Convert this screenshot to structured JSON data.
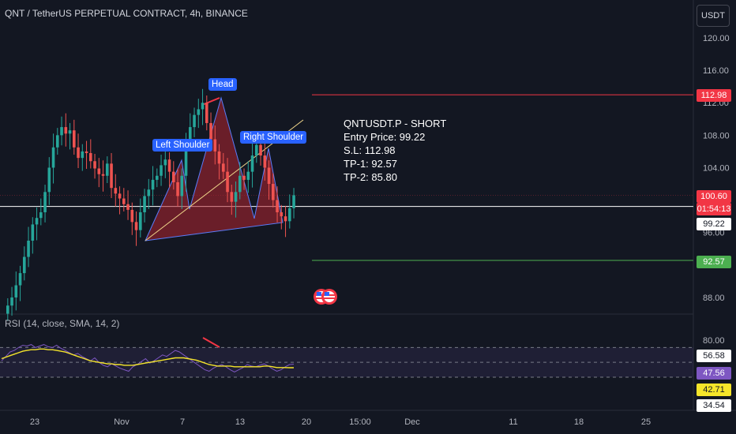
{
  "header": {
    "symbol_title": "QNT / TetherUS PERPETUAL CONTRACT, 4h, BINANCE",
    "currency_button": "USDT"
  },
  "trade_info": {
    "line1": "QNTUSDT.P - SHORT",
    "line2": "Entry Price: 99.22",
    "line3": "S.L: 112.98",
    "line4": "TP-1: 92.57",
    "line5": "TP-2: 85.80"
  },
  "pattern_labels": {
    "head": "Head",
    "left_shoulder": "Left Shoulder",
    "right_shoulder": "Right Shoulder"
  },
  "price_tags": {
    "stop_loss": "112.98",
    "current_price": "100.60",
    "countdown": "01:54:13",
    "entry": "99.22",
    "tp1": "92.57",
    "rsi_upper": "56.58",
    "rsi_value": "47.56",
    "rsi_ma": "42.71",
    "rsi_lower": "34.54"
  },
  "rsi_label": "RSI (14, close, SMA, 14, 2)",
  "colors": {
    "background": "#131722",
    "up": "#26a69a",
    "down": "#ef5350",
    "stop_loss_tag": "#f23645",
    "tp_tag": "#4caf50",
    "pattern_fill": "#b2242f",
    "rsi_line": "#7e57c2",
    "rsi_ma_line": "#f5e52a",
    "label_blue": "#2962ff"
  },
  "chart_data": [
    {
      "type": "candlestick",
      "title": "QNT / TetherUS PERPETUAL CONTRACT, 4h, BINANCE",
      "y_axis_ticks": [
        "120.00",
        "116.00",
        "112.00",
        "108.00",
        "104.00",
        "100.00",
        "96.00",
        "92.00",
        "88.00"
      ],
      "x_axis_ticks": [
        "23",
        "Nov",
        "7",
        "13",
        "20",
        "15:00",
        "Dec",
        "11",
        "18",
        "25"
      ],
      "ylim": [
        86,
        122
      ],
      "horizontal_levels": [
        {
          "value": 112.98,
          "color": "#f23645"
        },
        {
          "value": 99.22,
          "color": "#ffffff"
        },
        {
          "value": 92.57,
          "color": "#4caf50"
        }
      ],
      "close_series": [
        87.0,
        88.0,
        89.5,
        91.0,
        93.0,
        95.0,
        97.0,
        97.8,
        98.5,
        101.0,
        104.0,
        106.5,
        108.0,
        109.0,
        108.2,
        108.6,
        106.5,
        105.2,
        106.0,
        105.8,
        104.8,
        103.9,
        103.2,
        103.0,
        104.5,
        101.5,
        100.8,
        100.2,
        99.5,
        98.8,
        97.3,
        96.3,
        98.5,
        100.5,
        101.3,
        102.5,
        103.0,
        104.3,
        105.0,
        103.5,
        102.2,
        100.5,
        103.0,
        107.0,
        109.0,
        110.5,
        111.2,
        112.0,
        109.5,
        107.5,
        106.0,
        104.5,
        103.5,
        101.0,
        99.8,
        101.0,
        103.0,
        102.5,
        103.5,
        105.5,
        106.8,
        105.5,
        104.0,
        102.0,
        100.0,
        98.5,
        98.0,
        97.4,
        99.0,
        100.6
      ]
    },
    {
      "type": "line",
      "title": "RSI (14, close, SMA, 14, 2)",
      "y_axis_ticks": [
        "80.00",
        "56.58",
        "47.56",
        "42.71",
        "34.54"
      ],
      "series": [
        {
          "values": [
            52,
            58,
            64,
            66,
            70,
            73,
            72,
            74,
            70,
            72,
            74,
            71,
            70,
            73,
            69,
            66,
            63,
            60,
            62,
            58,
            55,
            52,
            56,
            50,
            46,
            44,
            48,
            45,
            42,
            40,
            38,
            44,
            47,
            51,
            55,
            49,
            52,
            56,
            60,
            58,
            62,
            66,
            64,
            60,
            56,
            52,
            48,
            44,
            40,
            38,
            42,
            45,
            47,
            44,
            40,
            37,
            40,
            43,
            47,
            45,
            44,
            46,
            48,
            45,
            41,
            38,
            40,
            44,
            47,
            47.56
          ]
        },
        {
          "values": [
            55,
            57,
            59,
            61,
            63,
            65,
            66,
            67,
            67,
            68,
            68,
            67,
            67,
            66,
            65,
            64,
            62,
            60,
            58,
            56,
            54,
            52,
            51,
            50,
            49,
            48,
            48,
            47,
            47,
            46,
            46,
            46,
            47,
            48,
            49,
            50,
            51,
            52,
            53,
            54,
            55,
            56,
            56,
            56,
            55,
            54,
            53,
            51,
            49,
            47,
            46,
            45,
            45,
            45,
            45,
            44,
            44,
            44,
            44,
            44,
            44,
            44,
            45,
            45,
            44,
            43,
            43,
            43,
            42.8,
            42.71
          ]
        }
      ],
      "horizontal_levels": [
        70,
        50,
        30
      ]
    }
  ]
}
